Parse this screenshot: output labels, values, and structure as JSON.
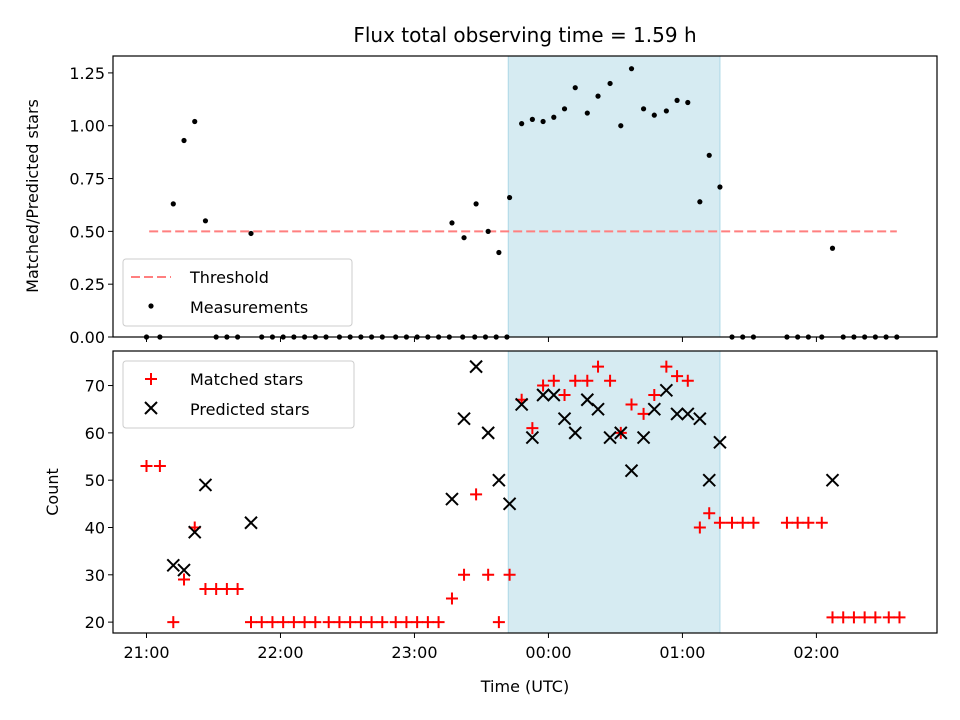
{
  "chart_data": {
    "type": "scatter",
    "title": "Flux total observing time = 1.59 h",
    "xlabel": "Time (UTC)",
    "x_tick_labels": [
      "21:00",
      "22:00",
      "23:00",
      "00:00",
      "01:00",
      "02:00"
    ],
    "x_tick_hours": [
      21,
      22,
      23,
      24,
      25,
      26
    ],
    "xlim_hours": [
      20.75,
      26.9
    ],
    "highlight_span_hours": [
      23.7,
      25.28
    ],
    "top": {
      "ylabel": "Matched/Predicted stars",
      "ylim": [
        0,
        1.33
      ],
      "y_ticks": [
        0.0,
        0.25,
        0.5,
        0.75,
        1.0,
        1.25
      ],
      "y_tick_labels": [
        "0.00",
        "0.25",
        "0.50",
        "0.75",
        "1.00",
        "1.25"
      ],
      "threshold": {
        "name": "Threshold",
        "value": 0.5,
        "x_range_hours": [
          21.02,
          26.6
        ],
        "color": "#ff7f7f"
      },
      "measurements": {
        "name": "Measurements",
        "color": "#000000",
        "points": [
          [
            21.0,
            0
          ],
          [
            21.1,
            0
          ],
          [
            21.2,
            0.63
          ],
          [
            21.28,
            0.93
          ],
          [
            21.36,
            1.02
          ],
          [
            21.44,
            0.55
          ],
          [
            21.52,
            0
          ],
          [
            21.6,
            0
          ],
          [
            21.68,
            0
          ],
          [
            21.78,
            0.49
          ],
          [
            21.86,
            0
          ],
          [
            21.94,
            0
          ],
          [
            22.02,
            0
          ],
          [
            22.1,
            0
          ],
          [
            22.18,
            0
          ],
          [
            22.26,
            0
          ],
          [
            22.34,
            0
          ],
          [
            22.44,
            0
          ],
          [
            22.52,
            0
          ],
          [
            22.6,
            0
          ],
          [
            22.68,
            0
          ],
          [
            22.76,
            0
          ],
          [
            22.86,
            0
          ],
          [
            22.94,
            0
          ],
          [
            23.02,
            0
          ],
          [
            23.1,
            0
          ],
          [
            23.18,
            0
          ],
          [
            23.26,
            0
          ],
          [
            23.36,
            0
          ],
          [
            23.45,
            0
          ],
          [
            23.53,
            0
          ],
          [
            23.61,
            0
          ],
          [
            23.69,
            0
          ],
          [
            23.28,
            0.54
          ],
          [
            23.37,
            0.47
          ],
          [
            23.46,
            0.63
          ],
          [
            23.55,
            0.5
          ],
          [
            23.63,
            0.4
          ],
          [
            23.71,
            0.66
          ],
          [
            23.8,
            1.01
          ],
          [
            23.88,
            1.03
          ],
          [
            23.96,
            1.02
          ],
          [
            24.04,
            1.04
          ],
          [
            24.12,
            1.08
          ],
          [
            24.2,
            1.18
          ],
          [
            24.29,
            1.06
          ],
          [
            24.37,
            1.14
          ],
          [
            24.46,
            1.2
          ],
          [
            24.54,
            1.0
          ],
          [
            24.62,
            1.27
          ],
          [
            24.71,
            1.08
          ],
          [
            24.79,
            1.05
          ],
          [
            24.88,
            1.07
          ],
          [
            24.96,
            1.12
          ],
          [
            25.04,
            1.11
          ],
          [
            25.13,
            0.64
          ],
          [
            25.2,
            0.86
          ],
          [
            25.28,
            0.71
          ],
          [
            25.37,
            0
          ],
          [
            25.45,
            0
          ],
          [
            25.53,
            0
          ],
          [
            25.78,
            0
          ],
          [
            25.86,
            0
          ],
          [
            25.94,
            0
          ],
          [
            26.04,
            0
          ],
          [
            26.12,
            0.42
          ],
          [
            26.2,
            0
          ],
          [
            26.28,
            0
          ],
          [
            26.36,
            0
          ],
          [
            26.44,
            0
          ],
          [
            26.52,
            0
          ],
          [
            26.6,
            0
          ]
        ]
      },
      "legend_position": "lower-left"
    },
    "bottom": {
      "ylabel": "Count",
      "ylim": [
        17.7,
        77.3
      ],
      "y_ticks": [
        20,
        30,
        40,
        50,
        60,
        70
      ],
      "y_tick_labels": [
        "20",
        "30",
        "40",
        "50",
        "60",
        "70"
      ],
      "series": [
        {
          "name": "Matched stars",
          "marker": "plus",
          "color": "#ff0000",
          "points": [
            [
              21.0,
              53
            ],
            [
              21.1,
              53
            ],
            [
              21.2,
              20
            ],
            [
              21.28,
              29
            ],
            [
              21.36,
              40
            ],
            [
              21.44,
              27
            ],
            [
              21.52,
              27
            ],
            [
              21.6,
              27
            ],
            [
              21.68,
              27
            ],
            [
              21.78,
              20
            ],
            [
              21.86,
              20
            ],
            [
              21.94,
              20
            ],
            [
              22.02,
              20
            ],
            [
              22.1,
              20
            ],
            [
              22.18,
              20
            ],
            [
              22.26,
              20
            ],
            [
              22.36,
              20
            ],
            [
              22.44,
              20
            ],
            [
              22.52,
              20
            ],
            [
              22.6,
              20
            ],
            [
              22.68,
              20
            ],
            [
              22.76,
              20
            ],
            [
              22.86,
              20
            ],
            [
              22.94,
              20
            ],
            [
              23.02,
              20
            ],
            [
              23.1,
              20
            ],
            [
              23.18,
              20
            ],
            [
              23.28,
              25
            ],
            [
              23.37,
              30
            ],
            [
              23.46,
              47
            ],
            [
              23.55,
              30
            ],
            [
              23.63,
              20
            ],
            [
              23.71,
              30
            ],
            [
              23.8,
              67
            ],
            [
              23.88,
              61
            ],
            [
              23.96,
              70
            ],
            [
              24.04,
              71
            ],
            [
              24.12,
              68
            ],
            [
              24.2,
              71
            ],
            [
              24.29,
              71
            ],
            [
              24.37,
              74
            ],
            [
              24.46,
              71
            ],
            [
              24.54,
              60
            ],
            [
              24.62,
              66
            ],
            [
              24.71,
              64
            ],
            [
              24.79,
              68
            ],
            [
              24.88,
              74
            ],
            [
              24.96,
              72
            ],
            [
              25.04,
              71
            ],
            [
              25.13,
              40
            ],
            [
              25.2,
              43
            ],
            [
              25.28,
              41
            ],
            [
              25.37,
              41
            ],
            [
              25.45,
              41
            ],
            [
              25.53,
              41
            ],
            [
              25.78,
              41
            ],
            [
              25.86,
              41
            ],
            [
              25.94,
              41
            ],
            [
              26.04,
              41
            ],
            [
              26.12,
              21
            ],
            [
              26.2,
              21
            ],
            [
              26.28,
              21
            ],
            [
              26.36,
              21
            ],
            [
              26.44,
              21
            ],
            [
              26.54,
              21
            ],
            [
              26.62,
              21
            ]
          ]
        },
        {
          "name": "Predicted stars",
          "marker": "x",
          "color": "#000000",
          "points": [
            [
              21.2,
              32
            ],
            [
              21.28,
              31
            ],
            [
              21.36,
              39
            ],
            [
              21.44,
              49
            ],
            [
              21.78,
              41
            ],
            [
              23.28,
              46
            ],
            [
              23.37,
              63
            ],
            [
              23.46,
              74
            ],
            [
              23.55,
              60
            ],
            [
              23.63,
              50
            ],
            [
              23.71,
              45
            ],
            [
              23.8,
              66
            ],
            [
              23.88,
              59
            ],
            [
              23.96,
              68
            ],
            [
              24.04,
              68
            ],
            [
              24.12,
              63
            ],
            [
              24.2,
              60
            ],
            [
              24.29,
              67
            ],
            [
              24.37,
              65
            ],
            [
              24.46,
              59
            ],
            [
              24.54,
              60
            ],
            [
              24.62,
              52
            ],
            [
              24.71,
              59
            ],
            [
              24.79,
              65
            ],
            [
              24.88,
              69
            ],
            [
              24.96,
              64
            ],
            [
              25.04,
              64
            ],
            [
              25.13,
              63
            ],
            [
              25.2,
              50
            ],
            [
              25.28,
              58
            ],
            [
              26.12,
              50
            ]
          ]
        }
      ],
      "legend_position": "top-left"
    }
  }
}
